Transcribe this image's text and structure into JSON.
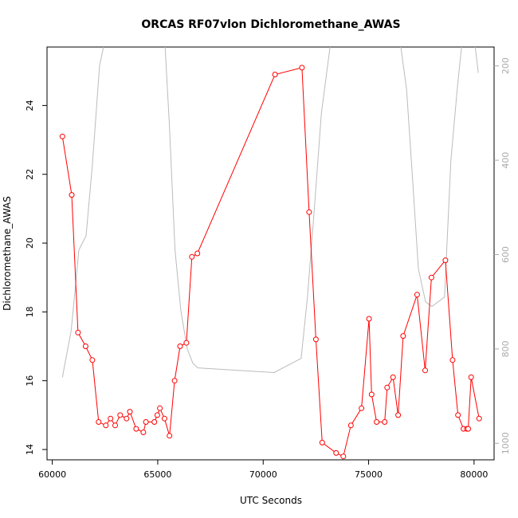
{
  "chart_data": {
    "type": "line",
    "title": "ORCAS RF07vlon Dichloromethane_AWAS",
    "xlabel": "UTC Seconds",
    "ylabel": "Dichloromethane_AWAS",
    "xlim": [
      59750,
      80950
    ],
    "ylim": [
      13.7,
      25.7
    ],
    "x_ticks": [
      60000,
      65000,
      70000,
      75000,
      80000
    ],
    "y_ticks": [
      14,
      16,
      18,
      20,
      22,
      24
    ],
    "y2_lim": [
      1035,
      160
    ],
    "y2_ticks": [
      200,
      400,
      600,
      800,
      1000
    ],
    "grid": false,
    "series": [
      {
        "color": "#ff0000",
        "marker": "open-circle",
        "x": [
          60480,
          60920,
          61220,
          61580,
          61900,
          62200,
          62540,
          62760,
          62980,
          63220,
          63520,
          63680,
          63980,
          64320,
          64440,
          64840,
          64980,
          65100,
          65320,
          65560,
          65800,
          66060,
          66360,
          66620,
          66880,
          70560,
          71840,
          72180,
          72500,
          72800,
          73460,
          73800,
          74160,
          74660,
          75020,
          75140,
          75380,
          75760,
          75880,
          76160,
          76400,
          76640,
          77300,
          77680,
          77980,
          78640,
          78980,
          79240,
          79500,
          79660,
          79720,
          79860,
          80240
        ],
        "y": [
          23.1,
          21.4,
          17.4,
          17.0,
          16.6,
          14.8,
          14.7,
          14.9,
          14.7,
          15.0,
          14.9,
          15.1,
          14.6,
          14.5,
          14.8,
          14.8,
          15.0,
          15.2,
          14.9,
          14.4,
          16.0,
          17.0,
          17.1,
          19.6,
          19.7,
          24.9,
          25.1,
          20.9,
          17.2,
          14.2,
          13.9,
          13.8,
          14.7,
          15.2,
          17.8,
          15.6,
          14.8,
          14.8,
          15.8,
          16.1,
          15.0,
          17.3,
          18.5,
          16.3,
          19.0,
          19.5,
          16.6,
          15.0,
          14.6,
          14.6,
          14.6,
          16.1,
          14.9
        ]
      },
      {
        "color": "#bbbbbb",
        "axis": "right",
        "x": [
          60480,
          60900,
          61260,
          61600,
          61900,
          62240,
          62520,
          62800,
          63200,
          63700,
          64300,
          64900,
          65300,
          65560,
          65820,
          66100,
          66400,
          66660,
          66900,
          70520,
          71800,
          72100,
          72400,
          72760,
          73200,
          73700,
          74200,
          74700,
          75200,
          75700,
          76100,
          76500,
          76800,
          77100,
          77360,
          77700,
          78000,
          78600,
          78900,
          79200,
          79500,
          79700,
          79900,
          80200
        ],
        "y": [
          860,
          760,
          590,
          560,
          410,
          200,
          140,
          100,
          90,
          88,
          90,
          92,
          120,
          330,
          590,
          720,
          800,
          830,
          840,
          850,
          820,
          690,
          520,
          300,
          150,
          100,
          80,
          80,
          85,
          95,
          110,
          150,
          250,
          450,
          630,
          700,
          710,
          690,
          400,
          250,
          120,
          80,
          100,
          215
        ]
      }
    ]
  }
}
